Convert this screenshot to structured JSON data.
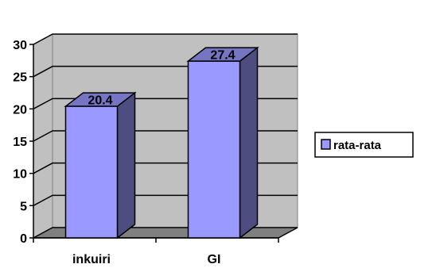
{
  "chart_data": {
    "type": "bar",
    "three_d": true,
    "categories": [
      "inkuiri",
      "GI"
    ],
    "series": [
      {
        "name": "rata-rata",
        "values": [
          20.4,
          27.4
        ],
        "color": "#9999ff"
      }
    ],
    "data_labels": [
      "20.4",
      "27.4"
    ],
    "y_ticks": [
      "0",
      "5",
      "10",
      "15",
      "20",
      "25",
      "30"
    ],
    "ylim": [
      0,
      30
    ],
    "grid": true,
    "legend": "right",
    "colors": {
      "wall": "#c0c0c0",
      "floor": "#808080",
      "bar_front": "#9999ff",
      "bar_top": "#7575c4",
      "bar_side": "#4d4d80"
    }
  }
}
